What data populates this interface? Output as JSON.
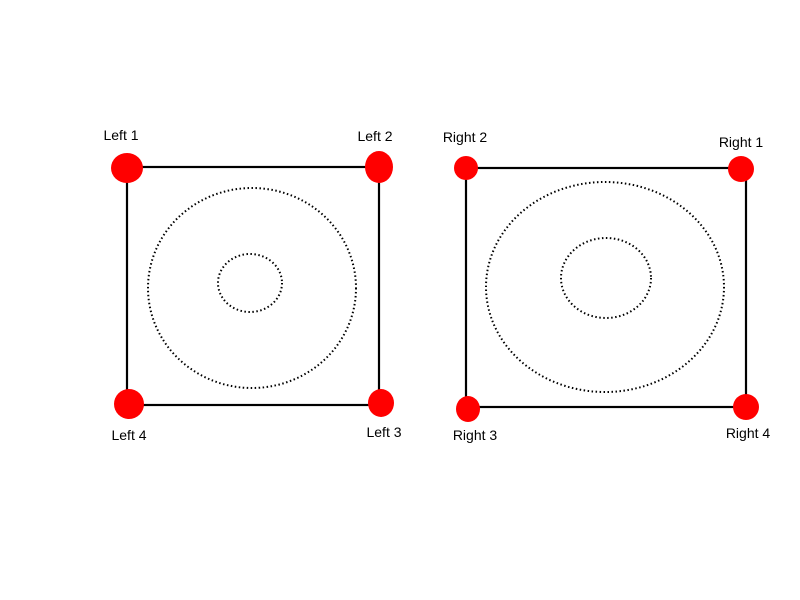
{
  "diagram": {
    "colors": {
      "line": "#000000",
      "point": "#ff0000",
      "background": "#ffffff"
    },
    "left": {
      "labels": {
        "corner_1": "Left 1",
        "corner_2": "Left 2",
        "corner_3": "Left 3",
        "corner_4": "Left 4"
      }
    },
    "right": {
      "labels": {
        "corner_1": "Right 1",
        "corner_2": "Right 2",
        "corner_3": "Right 3",
        "corner_4": "Right 4"
      }
    }
  }
}
